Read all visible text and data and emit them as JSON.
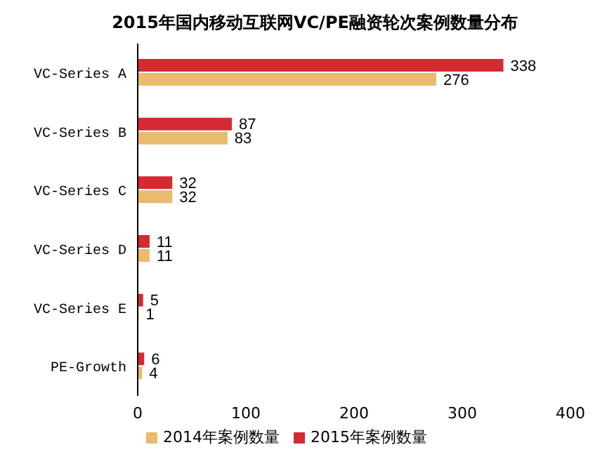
{
  "chart_data": {
    "type": "bar",
    "orientation": "horizontal",
    "title": "2015年国内移动互联网VC/PE融资轮次案例数量分布",
    "categories": [
      "VC-Series A",
      "VC-Series B",
      "VC-Series C",
      "VC-Series D",
      "VC-Series E",
      "PE-Growth"
    ],
    "series": [
      {
        "name": "2015年案例数量",
        "color": "#d42a32",
        "values": [
          338,
          87,
          32,
          11,
          5,
          6
        ]
      },
      {
        "name": "2014年案例数量",
        "color": "#e9bb6c",
        "values": [
          276,
          83,
          32,
          11,
          1,
          4
        ]
      }
    ],
    "xlim": [
      0,
      400
    ],
    "xticks": [
      0,
      100,
      200,
      300,
      400
    ],
    "data_labels": true,
    "legend": "bottom"
  }
}
